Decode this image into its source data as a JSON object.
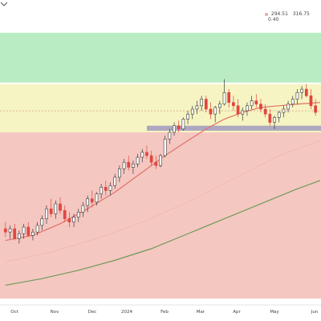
{
  "header": {
    "readout_a": "294.51",
    "readout_b": "316.75",
    "readout_c": "0.40"
  },
  "chart_data": {
    "type": "candlestick",
    "title": "",
    "x_labels": [
      "Oct",
      "Nov",
      "Dec",
      "2024",
      "Feb",
      "Mar",
      "Apr",
      "May",
      "Jun"
    ],
    "y_range": [
      170,
      340
    ],
    "zones": [
      {
        "name": "green-zone",
        "from": 300,
        "to": 330,
        "color": "#b9ecc2"
      },
      {
        "name": "yellow-zone",
        "from": 270,
        "to": 299,
        "color": "#f6f4c2"
      },
      {
        "name": "red-zone",
        "from": 170,
        "to": 270,
        "color": "#f5c7c1"
      }
    ],
    "support_band": {
      "from": 271,
      "to": 274,
      "color": "#a9a2bf"
    },
    "reference_level": 283,
    "candles": [
      {
        "o": 212,
        "h": 216,
        "l": 207,
        "c": 210
      },
      {
        "o": 210,
        "h": 214,
        "l": 206,
        "c": 212
      },
      {
        "o": 212,
        "h": 215,
        "l": 205,
        "c": 206
      },
      {
        "o": 206,
        "h": 211,
        "l": 203,
        "c": 209
      },
      {
        "o": 209,
        "h": 215,
        "l": 206,
        "c": 213
      },
      {
        "o": 213,
        "h": 216,
        "l": 207,
        "c": 208
      },
      {
        "o": 208,
        "h": 212,
        "l": 205,
        "c": 210
      },
      {
        "o": 210,
        "h": 216,
        "l": 208,
        "c": 214
      },
      {
        "o": 214,
        "h": 220,
        "l": 211,
        "c": 218
      },
      {
        "o": 218,
        "h": 226,
        "l": 215,
        "c": 224
      },
      {
        "o": 224,
        "h": 230,
        "l": 219,
        "c": 221
      },
      {
        "o": 221,
        "h": 229,
        "l": 218,
        "c": 227
      },
      {
        "o": 227,
        "h": 231,
        "l": 221,
        "c": 223
      },
      {
        "o": 223,
        "h": 226,
        "l": 216,
        "c": 218
      },
      {
        "o": 218,
        "h": 222,
        "l": 213,
        "c": 216
      },
      {
        "o": 216,
        "h": 221,
        "l": 213,
        "c": 219
      },
      {
        "o": 219,
        "h": 224,
        "l": 216,
        "c": 222
      },
      {
        "o": 222,
        "h": 228,
        "l": 219,
        "c": 226
      },
      {
        "o": 226,
        "h": 232,
        "l": 222,
        "c": 230
      },
      {
        "o": 230,
        "h": 235,
        "l": 225,
        "c": 228
      },
      {
        "o": 228,
        "h": 234,
        "l": 226,
        "c": 233
      },
      {
        "o": 233,
        "h": 239,
        "l": 230,
        "c": 237
      },
      {
        "o": 237,
        "h": 241,
        "l": 232,
        "c": 235
      },
      {
        "o": 235,
        "h": 240,
        "l": 232,
        "c": 238
      },
      {
        "o": 238,
        "h": 245,
        "l": 236,
        "c": 243
      },
      {
        "o": 243,
        "h": 250,
        "l": 240,
        "c": 248
      },
      {
        "o": 248,
        "h": 254,
        "l": 245,
        "c": 252
      },
      {
        "o": 252,
        "h": 256,
        "l": 247,
        "c": 249
      },
      {
        "o": 249,
        "h": 253,
        "l": 245,
        "c": 251
      },
      {
        "o": 251,
        "h": 257,
        "l": 249,
        "c": 255
      },
      {
        "o": 255,
        "h": 260,
        "l": 252,
        "c": 258
      },
      {
        "o": 258,
        "h": 262,
        "l": 254,
        "c": 256
      },
      {
        "o": 256,
        "h": 259,
        "l": 250,
        "c": 252
      },
      {
        "o": 252,
        "h": 256,
        "l": 248,
        "c": 250
      },
      {
        "o": 250,
        "h": 257,
        "l": 249,
        "c": 256
      },
      {
        "o": 256,
        "h": 268,
        "l": 255,
        "c": 266
      },
      {
        "o": 266,
        "h": 272,
        "l": 263,
        "c": 270
      },
      {
        "o": 270,
        "h": 276,
        "l": 268,
        "c": 274
      },
      {
        "o": 274,
        "h": 277,
        "l": 270,
        "c": 272
      },
      {
        "o": 272,
        "h": 279,
        "l": 271,
        "c": 278
      },
      {
        "o": 278,
        "h": 283,
        "l": 275,
        "c": 281
      },
      {
        "o": 281,
        "h": 286,
        "l": 278,
        "c": 284
      },
      {
        "o": 284,
        "h": 289,
        "l": 281,
        "c": 286
      },
      {
        "o": 286,
        "h": 292,
        "l": 283,
        "c": 290
      },
      {
        "o": 290,
        "h": 292,
        "l": 282,
        "c": 284
      },
      {
        "o": 284,
        "h": 288,
        "l": 278,
        "c": 281
      },
      {
        "o": 281,
        "h": 286,
        "l": 276,
        "c": 285
      },
      {
        "o": 285,
        "h": 289,
        "l": 281,
        "c": 287
      },
      {
        "o": 287,
        "h": 302,
        "l": 286,
        "c": 294
      },
      {
        "o": 294,
        "h": 296,
        "l": 285,
        "c": 288
      },
      {
        "o": 288,
        "h": 292,
        "l": 283,
        "c": 286
      },
      {
        "o": 286,
        "h": 290,
        "l": 279,
        "c": 281
      },
      {
        "o": 281,
        "h": 285,
        "l": 277,
        "c": 283
      },
      {
        "o": 283,
        "h": 288,
        "l": 280,
        "c": 286
      },
      {
        "o": 286,
        "h": 292,
        "l": 284,
        "c": 289
      },
      {
        "o": 289,
        "h": 293,
        "l": 285,
        "c": 287
      },
      {
        "o": 287,
        "h": 290,
        "l": 282,
        "c": 284
      },
      {
        "o": 284,
        "h": 287,
        "l": 279,
        "c": 281
      },
      {
        "o": 281,
        "h": 284,
        "l": 274,
        "c": 276
      },
      {
        "o": 276,
        "h": 280,
        "l": 272,
        "c": 279
      },
      {
        "o": 279,
        "h": 283,
        "l": 276,
        "c": 282
      },
      {
        "o": 282,
        "h": 286,
        "l": 279,
        "c": 284
      },
      {
        "o": 284,
        "h": 289,
        "l": 282,
        "c": 287
      },
      {
        "o": 287,
        "h": 292,
        "l": 285,
        "c": 290
      },
      {
        "o": 290,
        "h": 296,
        "l": 287,
        "c": 294
      },
      {
        "o": 294,
        "h": 298,
        "l": 290,
        "c": 296
      },
      {
        "o": 296,
        "h": 299,
        "l": 291,
        "c": 292
      },
      {
        "o": 292,
        "h": 296,
        "l": 284,
        "c": 286
      },
      {
        "o": 286,
        "h": 290,
        "l": 280,
        "c": 282
      }
    ],
    "ma_fast": [
      [
        0,
        205
      ],
      [
        6,
        208
      ],
      [
        12,
        215
      ],
      [
        18,
        224
      ],
      [
        24,
        234
      ],
      [
        30,
        246
      ],
      [
        35,
        256
      ],
      [
        40,
        265
      ],
      [
        44,
        272
      ],
      [
        48,
        278
      ],
      [
        52,
        282
      ],
      [
        56,
        285
      ],
      [
        60,
        286
      ],
      [
        64,
        287
      ],
      [
        69,
        288
      ]
    ],
    "ma_slow": [
      [
        0,
        178
      ],
      [
        8,
        182
      ],
      [
        16,
        187
      ],
      [
        24,
        193
      ],
      [
        32,
        200
      ],
      [
        40,
        209
      ],
      [
        48,
        218
      ],
      [
        56,
        227
      ],
      [
        64,
        236
      ],
      [
        69,
        241
      ]
    ],
    "ma_mid": [
      [
        0,
        192
      ],
      [
        10,
        198
      ],
      [
        20,
        206
      ],
      [
        30,
        216
      ],
      [
        40,
        228
      ],
      [
        50,
        242
      ],
      [
        60,
        256
      ],
      [
        69,
        265
      ]
    ]
  }
}
